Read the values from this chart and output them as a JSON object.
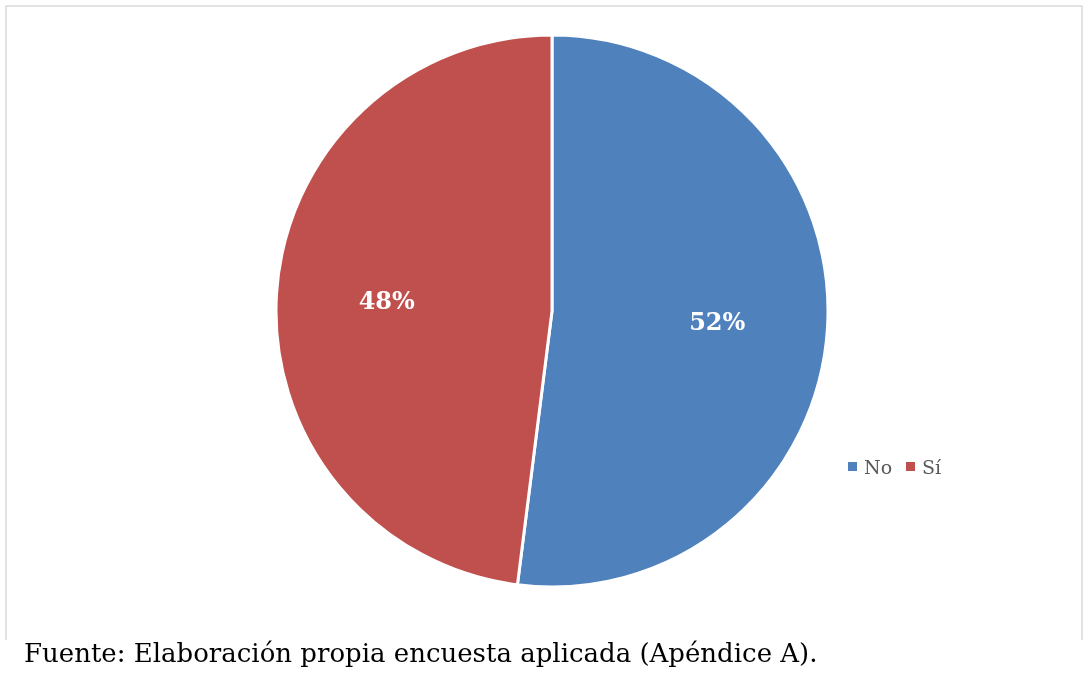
{
  "chart_data": {
    "type": "pie",
    "categories": [
      "No",
      "Sí"
    ],
    "values": [
      52,
      48
    ],
    "colors": [
      "#4f81bd",
      "#c0504d"
    ],
    "value_labels": [
      "52%",
      "48%"
    ],
    "legend": "right",
    "annotations": [
      "Fuente: Elaboración propia encuesta aplicada (Apéndice A)."
    ]
  }
}
